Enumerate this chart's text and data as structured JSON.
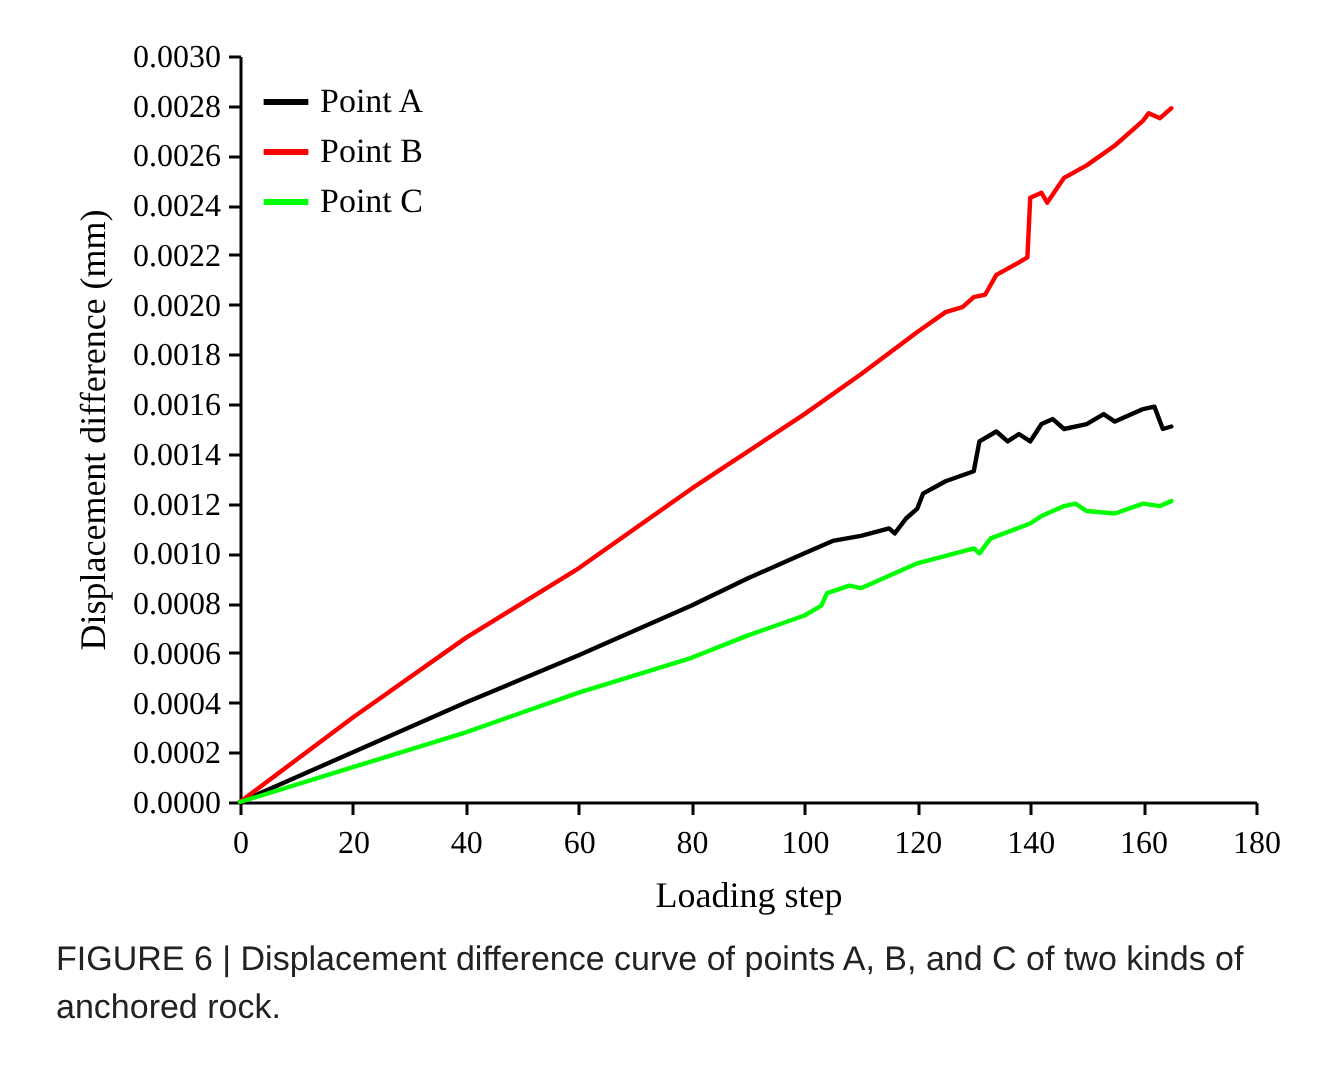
{
  "chart_data": {
    "type": "line",
    "xlabel": "Loading step",
    "ylabel": "Displacement difference (mm)",
    "annotations": [
      "FIGURE 6 | Displacement difference curve of points A, B, and C of two kinds of anchored rock."
    ],
    "xlim": [
      0,
      180
    ],
    "xticks": [
      0,
      20,
      40,
      60,
      80,
      100,
      120,
      140,
      160,
      180
    ],
    "ylim": [
      0,
      0.003
    ],
    "yticks": [
      {
        "value": 0,
        "label": "0.0000"
      },
      {
        "value": 0.0002,
        "label": "0.0002"
      },
      {
        "value": 0.0004,
        "label": "0.0004"
      },
      {
        "value": 0.0006,
        "label": "0.0006"
      },
      {
        "value": 0.0008,
        "label": "0.0008"
      },
      {
        "value": 0.001,
        "label": "0.0010"
      },
      {
        "value": 0.0012,
        "label": "0.0012"
      },
      {
        "value": 0.0014,
        "label": "0.0014"
      },
      {
        "value": 0.0016,
        "label": "0.0016"
      },
      {
        "value": 0.0018,
        "label": "0.0018"
      },
      {
        "value": 0.002,
        "label": "0.0020"
      },
      {
        "value": 0.0022,
        "label": "0.0022"
      },
      {
        "value": 0.0024,
        "label": "0.0024"
      },
      {
        "value": 0.0026,
        "label": "0.0026"
      },
      {
        "value": 0.0028,
        "label": "0.0028"
      },
      {
        "value": 0.003,
        "label": "0.0030"
      }
    ],
    "grid": false,
    "legend": "top left",
    "marker": "none",
    "line_style": "solid",
    "series": [
      {
        "name": "Point A",
        "color": "#000000",
        "x": [
          0,
          20,
          40,
          60,
          80,
          90,
          100,
          105,
          110,
          115,
          116,
          118,
          120,
          121,
          125,
          130,
          131,
          134,
          136,
          138,
          140,
          142,
          144,
          146,
          150,
          153,
          155,
          160,
          162,
          163.5,
          165
        ],
        "values": [
          0,
          0.0002,
          0.0004,
          0.00059,
          0.00079,
          0.0009,
          0.001,
          0.00105,
          0.00107,
          0.0011,
          0.00108,
          0.00114,
          0.00118,
          0.00124,
          0.00129,
          0.00133,
          0.00145,
          0.00149,
          0.00145,
          0.00148,
          0.00145,
          0.00152,
          0.00154,
          0.0015,
          0.00152,
          0.00156,
          0.00153,
          0.00158,
          0.00159,
          0.0015,
          0.00151
        ]
      },
      {
        "name": "Point B",
        "color": "#ff0000",
        "x": [
          0,
          20,
          40,
          60,
          80,
          100,
          110,
          120,
          125,
          128,
          130,
          132,
          134,
          138,
          139.5,
          140,
          142,
          143,
          146,
          150,
          155,
          158,
          160,
          161,
          163,
          165
        ],
        "values": [
          0,
          0.00034,
          0.00066,
          0.00094,
          0.00126,
          0.00156,
          0.00172,
          0.00189,
          0.00197,
          0.00199,
          0.00203,
          0.00204,
          0.00212,
          0.00217,
          0.00219,
          0.00243,
          0.00245,
          0.00241,
          0.00251,
          0.00256,
          0.00264,
          0.0027,
          0.00274,
          0.00277,
          0.00275,
          0.00279
        ]
      },
      {
        "name": "Point C",
        "color": "#00ff00",
        "x": [
          0,
          20,
          40,
          60,
          80,
          90,
          100,
          103,
          104,
          108,
          110,
          120,
          125,
          130,
          131,
          133,
          140,
          142,
          146,
          148,
          150,
          155,
          160,
          163,
          165
        ],
        "values": [
          0,
          0.00014,
          0.00028,
          0.00044,
          0.00058,
          0.00067,
          0.00075,
          0.00079,
          0.00084,
          0.00087,
          0.00086,
          0.00096,
          0.00099,
          0.00102,
          0.001,
          0.00106,
          0.00112,
          0.00115,
          0.00119,
          0.0012,
          0.00117,
          0.00116,
          0.0012,
          0.00119,
          0.00121
        ]
      }
    ]
  }
}
